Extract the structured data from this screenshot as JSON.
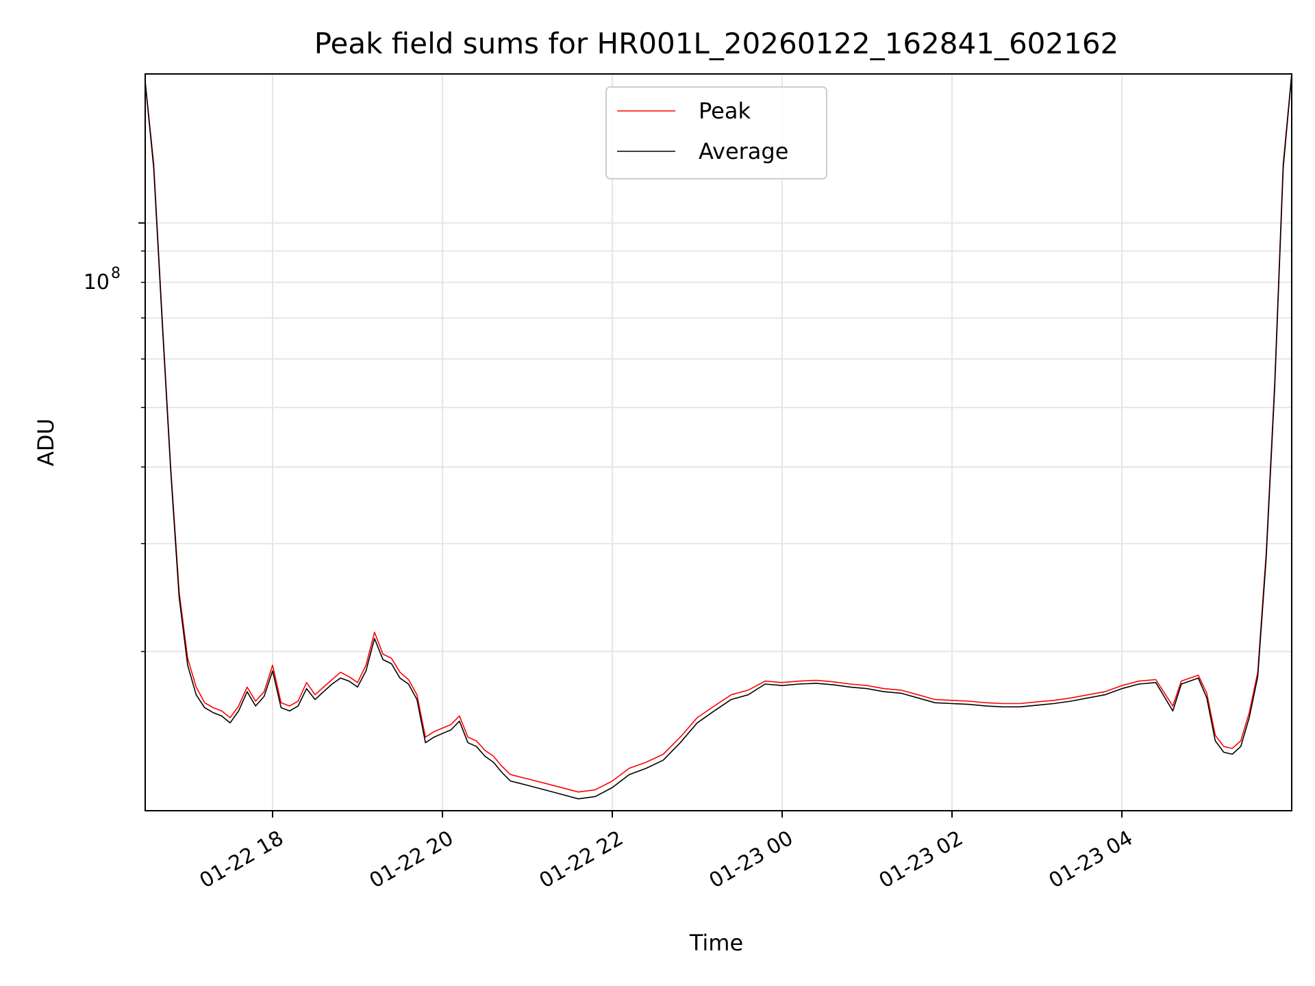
{
  "chart_data": {
    "type": "line",
    "title": "Peak field sums for HR001L_20260122_162841_602162",
    "xlabel": "Time",
    "ylabel": "ADU",
    "yscale": "log",
    "ylim": [
      11000000,
      175000000
    ],
    "xlim": [
      16.5,
      30.0
    ],
    "y_tick_major": {
      "value": 100000000,
      "base": "10",
      "exp": "8"
    },
    "y_tick_minor": [
      20000000,
      30000000,
      40000000,
      50000000,
      60000000,
      70000000,
      80000000,
      90000000
    ],
    "x_ticks": [
      {
        "value": 18,
        "label": "01-22 18"
      },
      {
        "value": 20,
        "label": "01-22 20"
      },
      {
        "value": 22,
        "label": "01-22 22"
      },
      {
        "value": 24,
        "label": "01-23 00"
      },
      {
        "value": 26,
        "label": "01-23 02"
      },
      {
        "value": 28,
        "label": "01-23 04"
      }
    ],
    "grid": true,
    "legend_position": "upper-center",
    "series": [
      {
        "name": "Peak",
        "color": "#ff0000",
        "x": [
          16.5,
          16.6,
          16.7,
          16.8,
          16.9,
          17.0,
          17.1,
          17.2,
          17.3,
          17.4,
          17.5,
          17.6,
          17.7,
          17.8,
          17.9,
          18.0,
          18.1,
          18.2,
          18.3,
          18.4,
          18.5,
          18.6,
          18.7,
          18.8,
          18.9,
          19.0,
          19.1,
          19.2,
          19.3,
          19.4,
          19.5,
          19.6,
          19.7,
          19.8,
          19.9,
          20.0,
          20.1,
          20.2,
          20.3,
          20.4,
          20.5,
          20.6,
          20.7,
          20.8,
          20.9,
          21.0,
          21.2,
          21.4,
          21.6,
          21.8,
          22.0,
          22.2,
          22.4,
          22.6,
          22.8,
          23.0,
          23.2,
          23.4,
          23.6,
          23.8,
          24.0,
          24.2,
          24.4,
          24.6,
          24.8,
          25.0,
          25.2,
          25.4,
          25.6,
          25.8,
          26.0,
          26.2,
          26.4,
          26.6,
          26.8,
          27.0,
          27.2,
          27.4,
          27.6,
          27.8,
          28.0,
          28.2,
          28.4,
          28.6,
          28.7,
          28.8,
          28.9,
          29.0,
          29.1,
          29.2,
          29.3,
          29.4,
          29.5,
          29.6,
          29.7,
          29.8,
          29.9,
          30.0
        ],
        "y": [
          170000000,
          125000000,
          70000000,
          40000000,
          25000000,
          19500000,
          17500000,
          16500000,
          16200000,
          16000000,
          15600000,
          16300000,
          17500000,
          16600000,
          17200000,
          19000000,
          16500000,
          16300000,
          16600000,
          17800000,
          17000000,
          17500000,
          18000000,
          18500000,
          18200000,
          17800000,
          19000000,
          21500000,
          19800000,
          19500000,
          18500000,
          18000000,
          17000000,
          14500000,
          14800000,
          15000000,
          15200000,
          15700000,
          14500000,
          14300000,
          13800000,
          13500000,
          13000000,
          12600000,
          12500000,
          12400000,
          12200000,
          12000000,
          11800000,
          11900000,
          12300000,
          12900000,
          13200000,
          13600000,
          14500000,
          15600000,
          16300000,
          17000000,
          17300000,
          17900000,
          17800000,
          17900000,
          17950000,
          17850000,
          17700000,
          17600000,
          17400000,
          17300000,
          17000000,
          16700000,
          16650000,
          16600000,
          16500000,
          16450000,
          16450000,
          16550000,
          16650000,
          16800000,
          17000000,
          17200000,
          17600000,
          17900000,
          18000000,
          16300000,
          17900000,
          18100000,
          18300000,
          17100000,
          14600000,
          14000000,
          13900000,
          14300000,
          15900000,
          18500000,
          29000000,
          55000000,
          125000000,
          175000000
        ]
      },
      {
        "name": "Average",
        "color": "#000000",
        "x": [
          16.5,
          16.6,
          16.7,
          16.8,
          16.9,
          17.0,
          17.1,
          17.2,
          17.3,
          17.4,
          17.5,
          17.6,
          17.7,
          17.8,
          17.9,
          18.0,
          18.1,
          18.2,
          18.3,
          18.4,
          18.5,
          18.6,
          18.7,
          18.8,
          18.9,
          19.0,
          19.1,
          19.2,
          19.3,
          19.4,
          19.5,
          19.6,
          19.7,
          19.8,
          19.9,
          20.0,
          20.1,
          20.2,
          20.3,
          20.4,
          20.5,
          20.6,
          20.7,
          20.8,
          20.9,
          21.0,
          21.2,
          21.4,
          21.6,
          21.8,
          22.0,
          22.2,
          22.4,
          22.6,
          22.8,
          23.0,
          23.2,
          23.4,
          23.6,
          23.8,
          24.0,
          24.2,
          24.4,
          24.6,
          24.8,
          25.0,
          25.2,
          25.4,
          25.6,
          25.8,
          26.0,
          26.2,
          26.4,
          26.6,
          26.8,
          27.0,
          27.2,
          27.4,
          27.6,
          27.8,
          28.0,
          28.2,
          28.4,
          28.6,
          28.7,
          28.8,
          28.9,
          29.0,
          29.1,
          29.2,
          29.3,
          29.4,
          29.5,
          29.6,
          29.7,
          29.8,
          29.9,
          30.0
        ],
        "y": [
          170000000,
          123000000,
          69000000,
          39500000,
          24500000,
          19000000,
          17000000,
          16200000,
          15900000,
          15700000,
          15300000,
          16000000,
          17200000,
          16300000,
          16900000,
          18600000,
          16200000,
          16000000,
          16300000,
          17400000,
          16700000,
          17200000,
          17700000,
          18100000,
          17900000,
          17500000,
          18600000,
          21000000,
          19400000,
          19100000,
          18100000,
          17700000,
          16700000,
          14200000,
          14500000,
          14700000,
          14900000,
          15400000,
          14200000,
          14000000,
          13500000,
          13200000,
          12700000,
          12300000,
          12200000,
          12100000,
          11900000,
          11700000,
          11500000,
          11600000,
          12000000,
          12600000,
          12900000,
          13300000,
          14200000,
          15300000,
          16000000,
          16700000,
          17000000,
          17700000,
          17600000,
          17700000,
          17750000,
          17650000,
          17500000,
          17400000,
          17200000,
          17100000,
          16800000,
          16500000,
          16450000,
          16400000,
          16300000,
          16250000,
          16250000,
          16350000,
          16450000,
          16600000,
          16800000,
          17000000,
          17400000,
          17700000,
          17800000,
          16000000,
          17700000,
          17900000,
          18100000,
          16800000,
          14300000,
          13700000,
          13600000,
          14000000,
          15600000,
          18200000,
          28500000,
          54000000,
          123000000,
          175000000
        ]
      }
    ]
  }
}
